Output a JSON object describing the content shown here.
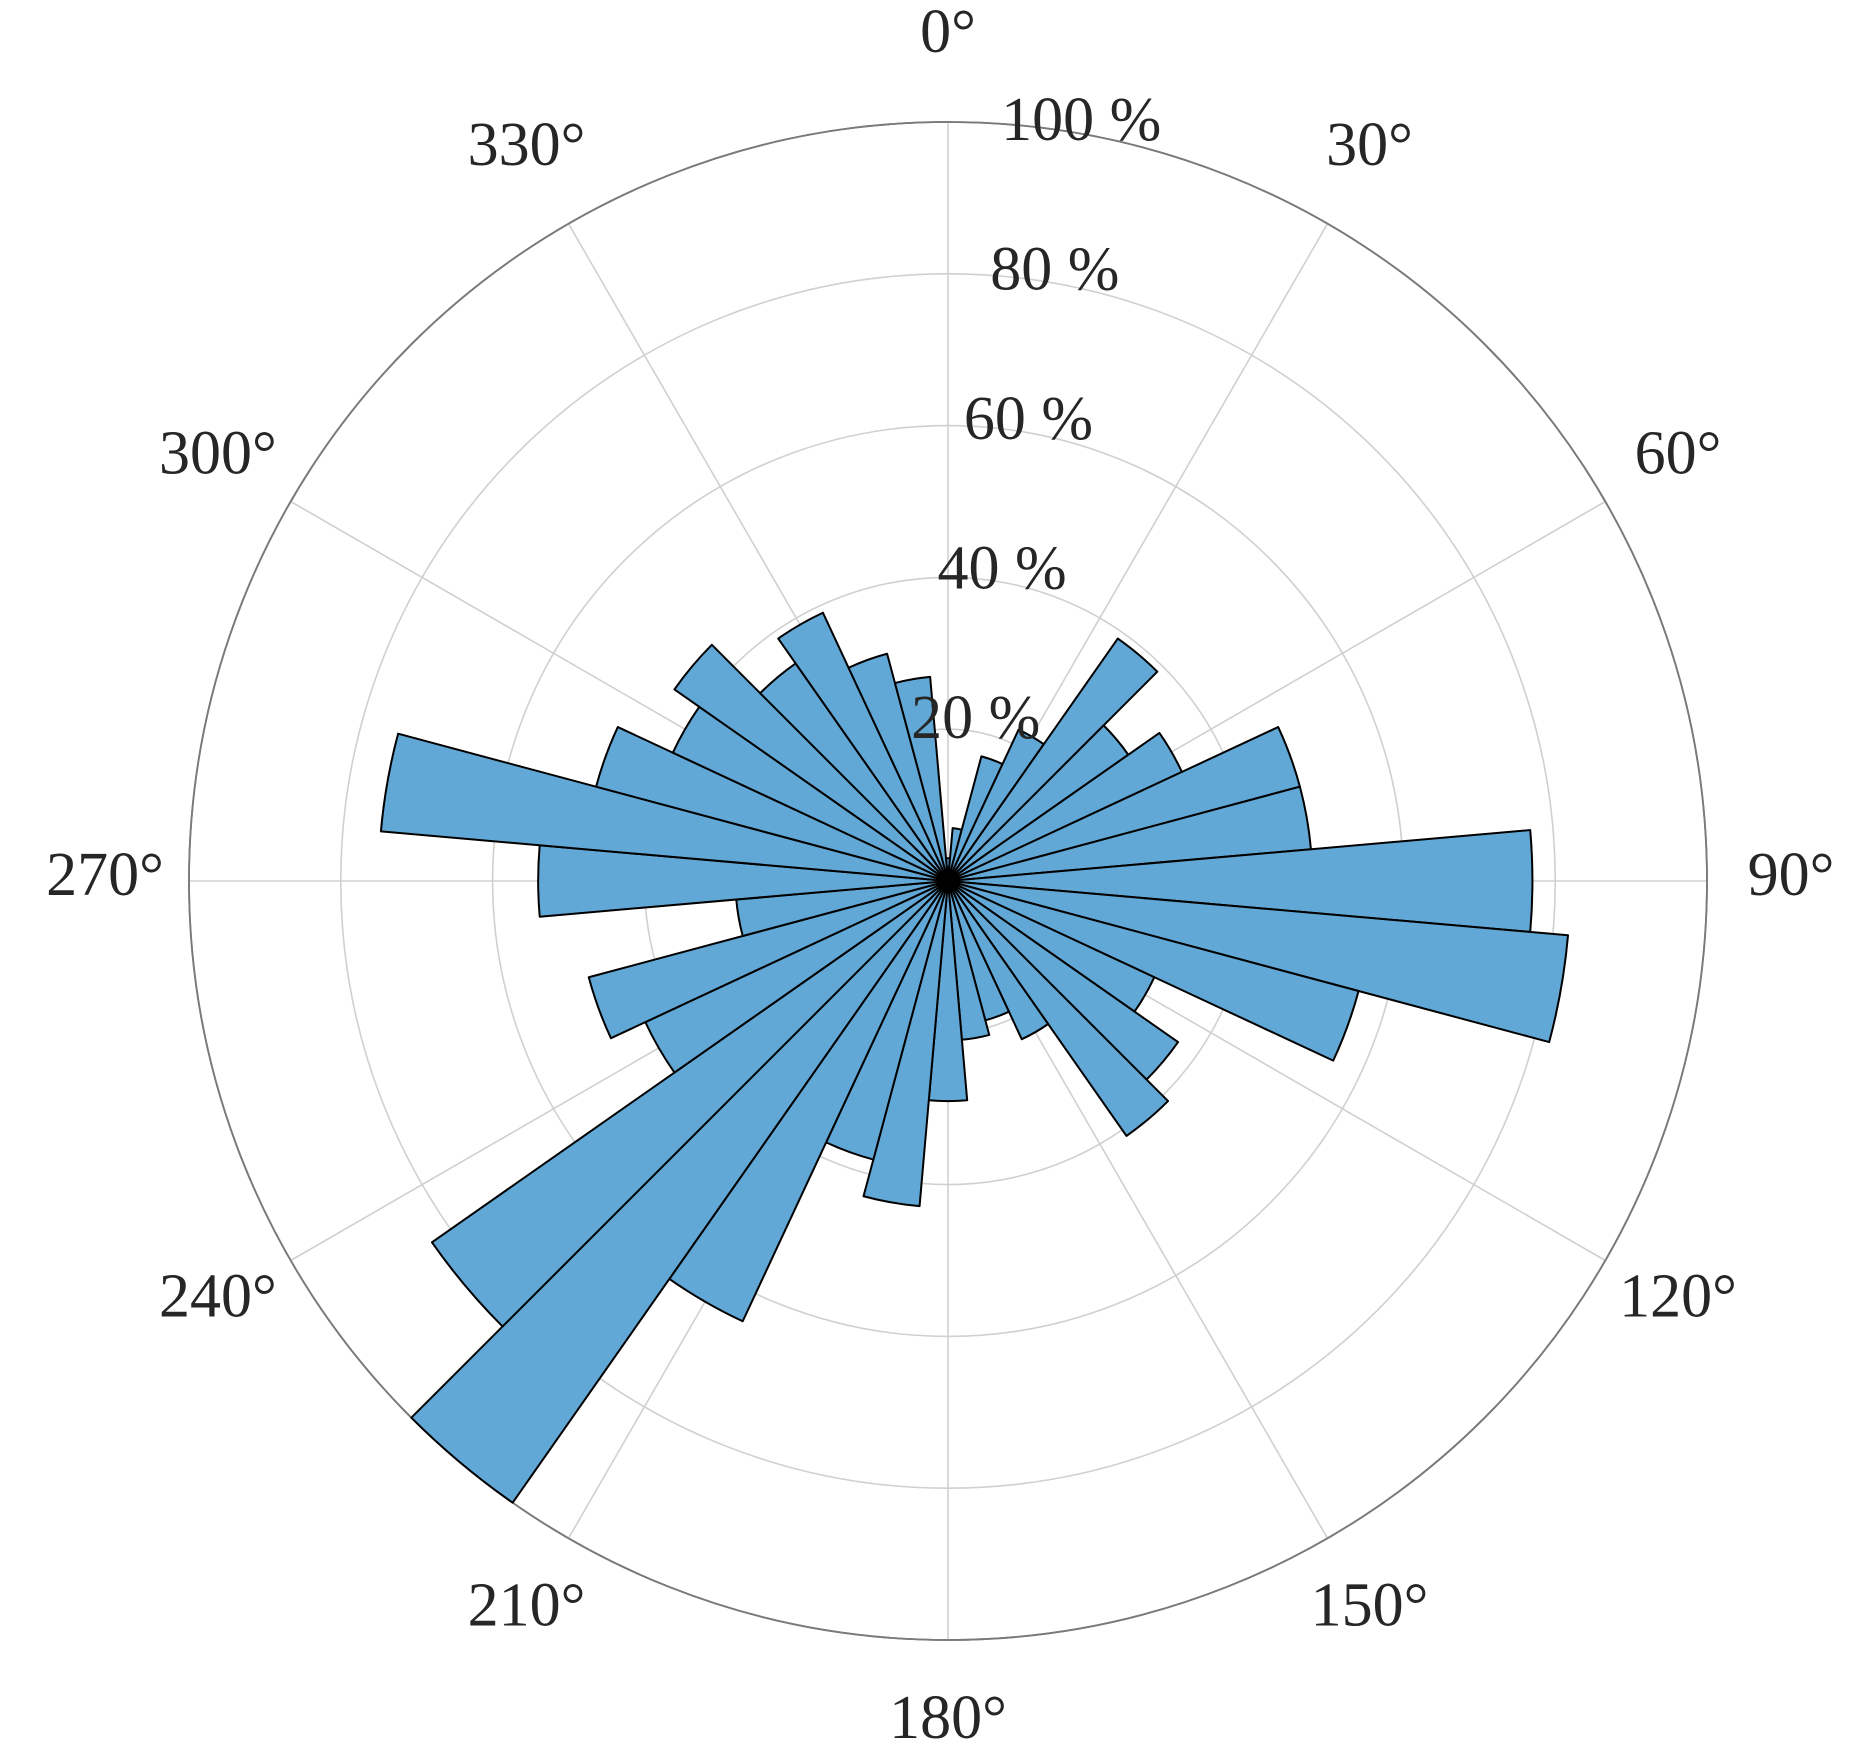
{
  "chart_data": {
    "type": "polar-histogram",
    "bins": [
      -5,
      5,
      15,
      25,
      35,
      45,
      55,
      65,
      75,
      85,
      95,
      105,
      115,
      125,
      135,
      145,
      155,
      165,
      175,
      185,
      195,
      205,
      215,
      225,
      235,
      245,
      255,
      265,
      275,
      285,
      295,
      305,
      315,
      325,
      335,
      345,
      355
    ],
    "values": [
      3,
      7,
      17,
      22,
      39,
      29,
      34,
      48,
      48,
      77,
      82,
      56,
      30,
      37,
      41,
      23,
      19,
      21,
      29,
      43,
      38,
      64,
      100,
      83,
      44,
      49,
      28,
      54,
      75,
      48,
      40,
      44,
      35,
      39,
      31,
      27
    ],
    "color": "#62a8d6",
    "edge_color": "#000000",
    "rlim": [
      0,
      100
    ],
    "rticks": [
      {
        "value": 20,
        "label": "20 %"
      },
      {
        "value": 40,
        "label": "40 %"
      },
      {
        "value": 60,
        "label": "60 %"
      },
      {
        "value": 80,
        "label": "80 %"
      },
      {
        "value": 100,
        "label": "100 %"
      }
    ],
    "thetaticks": [
      {
        "value": 0,
        "label": "0°"
      },
      {
        "value": 30,
        "label": "30°"
      },
      {
        "value": 60,
        "label": "60°"
      },
      {
        "value": 90,
        "label": "90°"
      },
      {
        "value": 120,
        "label": "120°"
      },
      {
        "value": 150,
        "label": "150°"
      },
      {
        "value": 180,
        "label": "180°"
      },
      {
        "value": 210,
        "label": "210°"
      },
      {
        "value": 240,
        "label": "240°"
      },
      {
        "value": 270,
        "label": "270°"
      },
      {
        "value": 300,
        "label": "300°"
      },
      {
        "value": 330,
        "label": "330°"
      }
    ],
    "theta_direction": "clockwise",
    "theta_zero": "top",
    "grid": true
  }
}
